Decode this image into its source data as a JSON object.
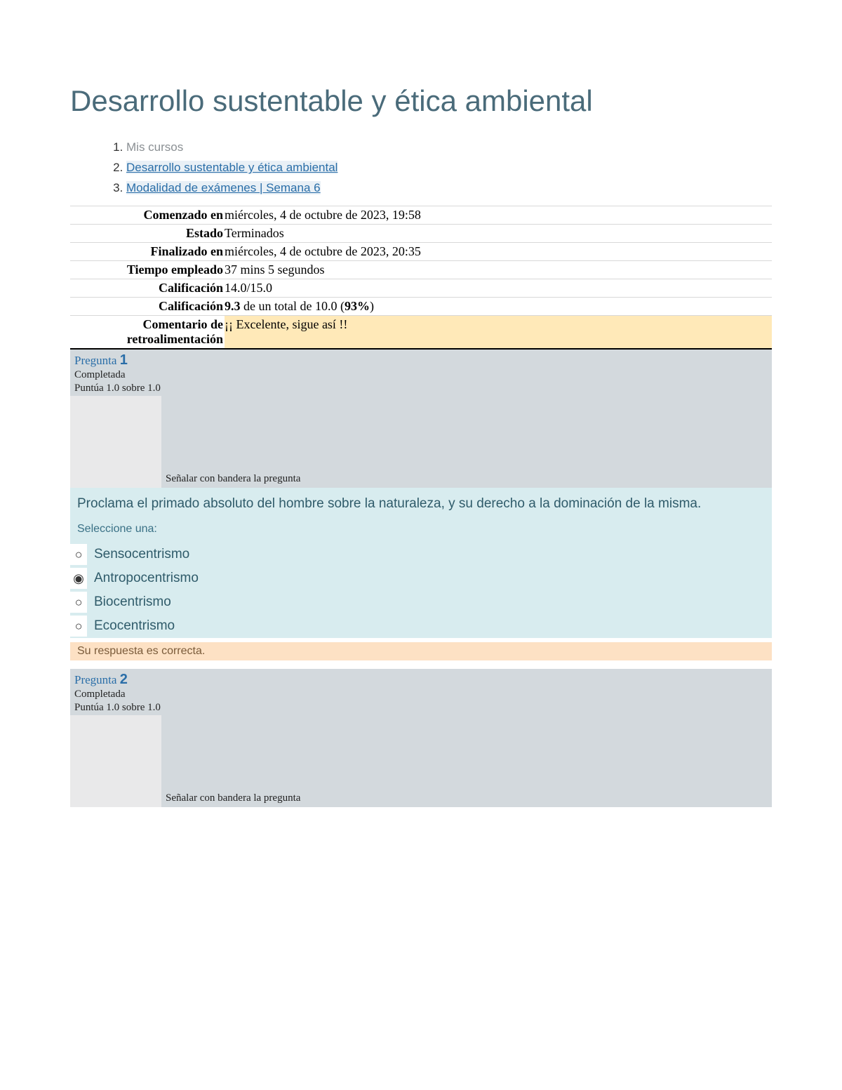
{
  "title": "Desarrollo sustentable y ética ambiental",
  "breadcrumb": {
    "item1": "Mis cursos",
    "item2": "Desarrollo sustentable y ética ambiental",
    "item3": "Modalidad de exámenes | Semana 6"
  },
  "summary": {
    "started_label": "Comenzado en",
    "started_value": "miércoles, 4 de octubre de 2023, 19:58",
    "state_label": "Estado",
    "state_value": "Terminados",
    "finished_label": "Finalizado en",
    "finished_value": "miércoles, 4 de octubre de 2023, 20:35",
    "time_label": "Tiempo empleado",
    "time_value": "37 mins 5 segundos",
    "grade1_label": "Calificación",
    "grade1_value": "14.0/15.0",
    "grade2_label": "Calificación",
    "grade2_value_prefix": "9.3",
    "grade2_value_mid": " de un total de 10.0 (",
    "grade2_value_pct": "93%",
    "grade2_value_suffix": ")",
    "feedback_label": "Comentario de retroalimentación",
    "feedback_value": "¡¡ Excelente, sigue así !!"
  },
  "q1": {
    "label": "Pregunta ",
    "number": "1",
    "status": "Completada",
    "score": "Puntúa 1.0 sobre 1.0",
    "flag": "Señalar con bandera la pregunta",
    "text": "Proclama el primado absoluto del hombre sobre la naturaleza, y su derecho a la dominación de la misma.",
    "prompt": "Seleccione una:",
    "options": {
      "a": "Sensocentrismo",
      "b": "Antropocentrismo",
      "c": "Biocentrismo",
      "d": "Ecocentrismo"
    },
    "selected_index": 1,
    "feedback": "Su respuesta es correcta."
  },
  "q2": {
    "label": "Pregunta ",
    "number": "2",
    "status": "Completada",
    "score": "Puntúa 1.0 sobre 1.0",
    "flag": "Señalar con bandera la pregunta"
  },
  "colors": {
    "title": "#4a6b7a",
    "link": "#2a6ea8",
    "qbox_bg": "#d3d9dd",
    "leftpad_bg": "#e9e9ea",
    "qcontent_bg": "#d8ecef",
    "qcontent_text": "#2f5b6a",
    "feedback_bg": "#fde1c4",
    "feedback_text": "#7a5b3a",
    "summary_highlight": "#ffe9b8"
  }
}
